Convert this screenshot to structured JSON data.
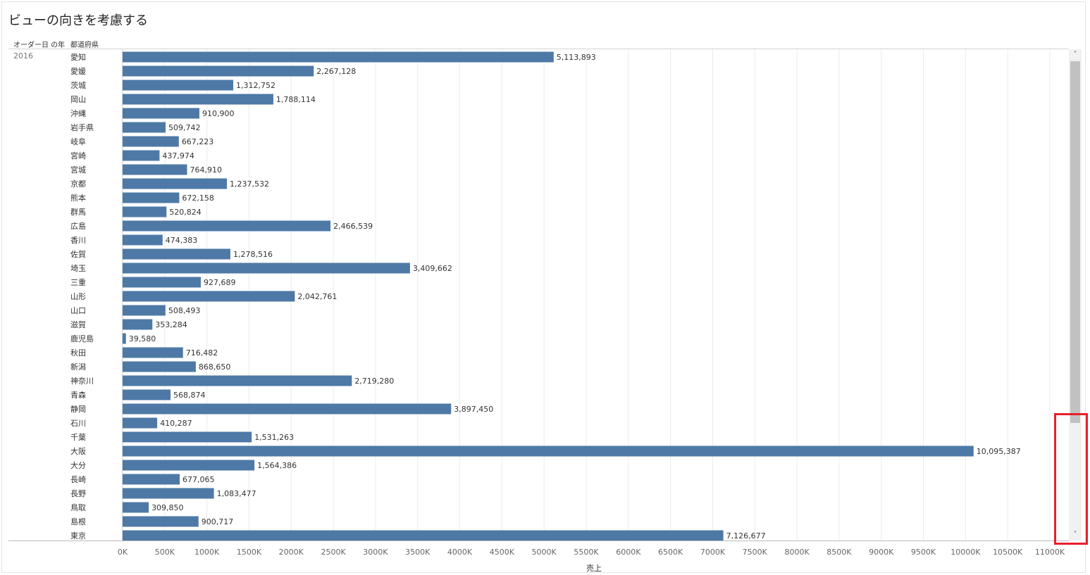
{
  "title": "ビューの向きを考慮する",
  "headers": {
    "year": "オーダー日 の年",
    "prefecture": "都道府県"
  },
  "year_label": "2016",
  "scrollbar": {
    "up_icon": "˄",
    "down_icon": "˅"
  },
  "colors": {
    "bar": "#4e79a7",
    "grid": "#ececec",
    "highlight": "#e8202a"
  },
  "chart_data": {
    "type": "bar",
    "orientation": "horizontal",
    "title": "",
    "xlabel": "売上",
    "ylabel": "都道府県",
    "xlim": [
      0,
      11000000
    ],
    "grid": true,
    "x_ticks": [
      "0K",
      "500K",
      "1000K",
      "1500K",
      "2000K",
      "2500K",
      "3000K",
      "3500K",
      "4000K",
      "4500K",
      "5000K",
      "5500K",
      "6000K",
      "6500K",
      "7000K",
      "7500K",
      "8000K",
      "8500K",
      "9000K",
      "9500K",
      "10000K",
      "10500K",
      "11000K"
    ],
    "categories": [
      "愛知",
      "愛媛",
      "茨城",
      "岡山",
      "沖縄",
      "岩手県",
      "岐阜",
      "宮崎",
      "宮城",
      "京都",
      "熊本",
      "群馬",
      "広島",
      "香川",
      "佐賀",
      "埼玉",
      "三重",
      "山形",
      "山口",
      "滋賀",
      "鹿児島",
      "秋田",
      "新潟",
      "神奈川",
      "青森",
      "静岡",
      "石川",
      "千葉",
      "大阪",
      "大分",
      "長崎",
      "長野",
      "鳥取",
      "島根",
      "東京"
    ],
    "values": [
      5113893,
      2267128,
      1312752,
      1788114,
      910900,
      509742,
      667223,
      437974,
      764910,
      1237532,
      672158,
      520824,
      2466539,
      474383,
      1278516,
      3409662,
      927689,
      2042761,
      508493,
      353284,
      39580,
      716482,
      868650,
      2719280,
      568874,
      3897450,
      410287,
      1531263,
      10095387,
      1564386,
      677065,
      1083477,
      309850,
      900717,
      7126677
    ],
    "value_labels": [
      "5,113,893",
      "2,267,128",
      "1,312,752",
      "1,788,114",
      "910,900",
      "509,742",
      "667,223",
      "437,974",
      "764,910",
      "1,237,532",
      "672,158",
      "520,824",
      "2,466,539",
      "474,383",
      "1,278,516",
      "3,409,662",
      "927,689",
      "2,042,761",
      "508,493",
      "353,284",
      "39,580",
      "716,482",
      "868,650",
      "2,719,280",
      "568,874",
      "3,897,450",
      "410,287",
      "1,531,263",
      "10,095,387",
      "1,564,386",
      "677,065",
      "1,083,477",
      "309,850",
      "900,717",
      "7,126,677"
    ]
  }
}
